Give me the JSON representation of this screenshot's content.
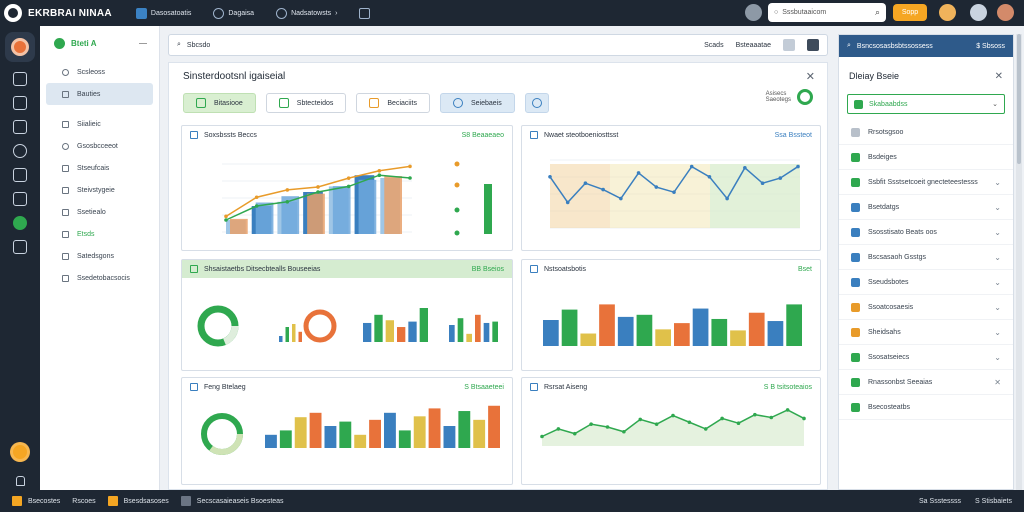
{
  "app": {
    "title": "EKRBRAI NINAA"
  },
  "top_tabs": [
    {
      "label": "Dasosatoatis"
    },
    {
      "label": "Dagaisa"
    },
    {
      "label": "Nadsatowsts"
    }
  ],
  "search": {
    "placeholder": "Sssbutaaicom"
  },
  "top_button": {
    "label": "Sopp"
  },
  "sidebar": {
    "header": "Bteti A",
    "items": [
      {
        "label": "Scsleoss"
      },
      {
        "label": "Bauties"
      },
      {
        "label": "Siialieic"
      },
      {
        "label": "Gsosbcceeot"
      },
      {
        "label": "Stseufcais"
      },
      {
        "label": "Steivstygeie"
      },
      {
        "label": "Ssetiealo"
      },
      {
        "label": "Etsds"
      },
      {
        "label": "Satedsgons"
      },
      {
        "label": "Ssedetobacsocis"
      }
    ]
  },
  "main": {
    "search_label": "Sbcsdo",
    "filters": [
      {
        "label": "Scads"
      },
      {
        "label": "Bsteaaatae"
      }
    ],
    "panel_title": "Sinsterdootsnl igaiseial",
    "tabs": [
      {
        "label": "Bitasiooe"
      },
      {
        "label": "Sbtecteidos"
      },
      {
        "label": "Beciaciits"
      },
      {
        "label": "Seiebaeis"
      }
    ],
    "gauge_labels": [
      "Asisecs",
      "Saeotegs"
    ],
    "cards": [
      {
        "title": "Soxsbssts Beccs",
        "value": "S8 Beaaeaeo"
      },
      {
        "title": "Nwaet steotboeniosttsst",
        "value": "Ssa Bssteot"
      },
      {
        "title": "Shsaistaetbs Ditsecbtealls Bouseeias",
        "value": "BB Bseios"
      },
      {
        "title": "Nstsoatsbotis",
        "value": "Bset"
      },
      {
        "title": "Feng Btelaeg",
        "value": "S Btsaaeteei"
      },
      {
        "title": "Rsrsat Aiseng",
        "value": "S B tsitsoteaios"
      }
    ]
  },
  "right_panel": {
    "header": "Bsncsosasbsbtssossess",
    "header_right": "$ Sbsoss",
    "title": "Dleiay Bseie",
    "select": "Skabaabdss",
    "items": [
      {
        "label": "Rrsotsgsoo"
      },
      {
        "label": "Bsdeiges"
      },
      {
        "label": "Ssbfit Ssstsetcoeit gnecteteestesss"
      },
      {
        "label": "Bsetdatgs"
      },
      {
        "label": "Ssosstisato Beats oos"
      },
      {
        "label": "Bscsasaoh Gsstgs"
      },
      {
        "label": "Sseudsbotes"
      },
      {
        "label": "Ssoatcosaesis"
      },
      {
        "label": "Sheidsahs"
      },
      {
        "label": "Ssosatseiecs"
      },
      {
        "label": "Rnassonbst Seeaias"
      },
      {
        "label": "Bsecosteatbs"
      },
      {
        "label": "Sseltasbegos"
      }
    ]
  },
  "bottom_bar": {
    "items": [
      {
        "label": "Bsecostes"
      },
      {
        "label": "Rscoes"
      },
      {
        "label": "Bsesdsasoses"
      },
      {
        "label": "Secscasaieaseis Bsoesteas"
      }
    ],
    "right": [
      "Sa Ssstessss",
      "S Stisbaiets"
    ]
  },
  "chart_data": [
    {
      "type": "bar",
      "series": [
        {
          "name": "A",
          "values": [
            1,
            2,
            2.3,
            3,
            3.4,
            4.2,
            4
          ]
        },
        {
          "name": "B",
          "values": [
            1.2,
            2.5,
            3,
            3.2,
            3.8,
            4.3,
            4.6
          ]
        }
      ]
    },
    {
      "type": "area",
      "values": [
        4,
        2,
        3.5,
        3,
        2.3,
        4.3,
        3.2,
        2.8,
        4.8,
        4,
        2.3,
        4.7,
        3.5,
        3.9,
        4.8
      ]
    },
    {
      "type": "bar",
      "values": [
        1,
        2.5,
        3,
        1.7,
        2.8,
        4,
        3.2,
        2.2,
        3,
        5
      ]
    },
    {
      "type": "bar",
      "values": [
        2.5,
        3.5,
        1.2,
        4,
        2.8,
        3,
        1.6,
        2.2,
        3.6,
        2.6,
        1.5,
        3.2,
        2.4,
        4
      ]
    },
    {
      "type": "bar",
      "values": [
        1.5,
        2,
        3.5,
        4,
        2.5,
        3,
        1.5,
        3.2,
        4,
        2,
        3.6,
        4.5,
        2.5,
        4.2,
        3.2,
        4.8
      ]
    },
    {
      "type": "area",
      "values": [
        1,
        1.8,
        1.3,
        2.3,
        2,
        1.5,
        2.8,
        2.3,
        3.2,
        2.5,
        1.8,
        2.9,
        2.4,
        3.3,
        3,
        3.8,
        2.9
      ]
    }
  ]
}
